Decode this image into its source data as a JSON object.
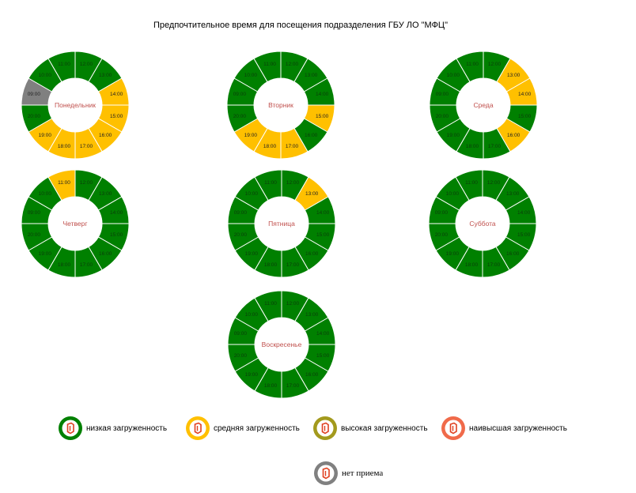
{
  "title": "Предпочтительное время для посещения подразделения ГБУ ЛО \"МФЦ\"",
  "colors": {
    "low": "#008000",
    "medium": "#ffc000",
    "high": "#a39a1d",
    "highest": "#f06a4a",
    "closed": "#808080",
    "day_label": "#c0504d"
  },
  "days": [
    {
      "name": "Понедельник",
      "slots": [
        {
          "time": "12:00",
          "level": "low"
        },
        {
          "time": "13:00",
          "level": "low"
        },
        {
          "time": "14:00",
          "level": "medium"
        },
        {
          "time": "15:00",
          "level": "medium"
        },
        {
          "time": "16:00",
          "level": "medium"
        },
        {
          "time": "17:00",
          "level": "medium"
        },
        {
          "time": "18:00",
          "level": "medium"
        },
        {
          "time": "19:00",
          "level": "medium"
        },
        {
          "time": "20:00",
          "level": "low"
        },
        {
          "time": "09:00",
          "level": "closed"
        },
        {
          "time": "10:00",
          "level": "low"
        },
        {
          "time": "11:00",
          "level": "low"
        }
      ]
    },
    {
      "name": "Вторник",
      "slots": [
        {
          "time": "12:00",
          "level": "low"
        },
        {
          "time": "13:00",
          "level": "low"
        },
        {
          "time": "14:00",
          "level": "low"
        },
        {
          "time": "15:00",
          "level": "medium"
        },
        {
          "time": "16:00",
          "level": "low"
        },
        {
          "time": "17:00",
          "level": "medium"
        },
        {
          "time": "18:00",
          "level": "medium"
        },
        {
          "time": "19:00",
          "level": "medium"
        },
        {
          "time": "20:00",
          "level": "low"
        },
        {
          "time": "09:00",
          "level": "low"
        },
        {
          "time": "10:00",
          "level": "low"
        },
        {
          "time": "11:00",
          "level": "low"
        }
      ]
    },
    {
      "name": "Среда",
      "slots": [
        {
          "time": "12:00",
          "level": "low"
        },
        {
          "time": "13:00",
          "level": "medium"
        },
        {
          "time": "14:00",
          "level": "medium"
        },
        {
          "time": "15:00",
          "level": "low"
        },
        {
          "time": "16:00",
          "level": "medium"
        },
        {
          "time": "17:00",
          "level": "low"
        },
        {
          "time": "18:00",
          "level": "low"
        },
        {
          "time": "19:00",
          "level": "low"
        },
        {
          "time": "20:00",
          "level": "low"
        },
        {
          "time": "09:00",
          "level": "low"
        },
        {
          "time": "10:00",
          "level": "low"
        },
        {
          "time": "11:00",
          "level": "low"
        }
      ]
    },
    {
      "name": "Четверг",
      "slots": [
        {
          "time": "12:00",
          "level": "low"
        },
        {
          "time": "13:00",
          "level": "low"
        },
        {
          "time": "14:00",
          "level": "low"
        },
        {
          "time": "15:00",
          "level": "low"
        },
        {
          "time": "16:00",
          "level": "low"
        },
        {
          "time": "17:00",
          "level": "low"
        },
        {
          "time": "18:00",
          "level": "low"
        },
        {
          "time": "19:00",
          "level": "low"
        },
        {
          "time": "20:00",
          "level": "low"
        },
        {
          "time": "09:00",
          "level": "low"
        },
        {
          "time": "10:00",
          "level": "low"
        },
        {
          "time": "11:00",
          "level": "medium"
        }
      ]
    },
    {
      "name": "Пятница",
      "slots": [
        {
          "time": "12:00",
          "level": "low"
        },
        {
          "time": "13:00",
          "level": "medium"
        },
        {
          "time": "14:00",
          "level": "low"
        },
        {
          "time": "15:00",
          "level": "low"
        },
        {
          "time": "16:00",
          "level": "low"
        },
        {
          "time": "17:00",
          "level": "low"
        },
        {
          "time": "18:00",
          "level": "low"
        },
        {
          "time": "19:00",
          "level": "low"
        },
        {
          "time": "20:00",
          "level": "low"
        },
        {
          "time": "09:00",
          "level": "low"
        },
        {
          "time": "10:00",
          "level": "low"
        },
        {
          "time": "11:00",
          "level": "low"
        }
      ]
    },
    {
      "name": "Суббота",
      "slots": [
        {
          "time": "12:00",
          "level": "low"
        },
        {
          "time": "13:00",
          "level": "low"
        },
        {
          "time": "14:00",
          "level": "low"
        },
        {
          "time": "15:00",
          "level": "low"
        },
        {
          "time": "16:00",
          "level": "low"
        },
        {
          "time": "17:00",
          "level": "low"
        },
        {
          "time": "18:00",
          "level": "low"
        },
        {
          "time": "19:00",
          "level": "low"
        },
        {
          "time": "20:00",
          "level": "low"
        },
        {
          "time": "09:00",
          "level": "low"
        },
        {
          "time": "10:00",
          "level": "low"
        },
        {
          "time": "11:00",
          "level": "low"
        }
      ]
    },
    {
      "name": "Воскресенье",
      "slots": [
        {
          "time": "12:00",
          "level": "low"
        },
        {
          "time": "13:00",
          "level": "low"
        },
        {
          "time": "14:00",
          "level": "low"
        },
        {
          "time": "15:00",
          "level": "low"
        },
        {
          "time": "16:00",
          "level": "low"
        },
        {
          "time": "17:00",
          "level": "low"
        },
        {
          "time": "18:00",
          "level": "low"
        },
        {
          "time": "19:00",
          "level": "low"
        },
        {
          "time": "20:00",
          "level": "low"
        },
        {
          "time": "09:00",
          "level": "low"
        },
        {
          "time": "10:00",
          "level": "low"
        },
        {
          "time": "11:00",
          "level": "low"
        }
      ]
    }
  ],
  "legend": [
    {
      "key": "low",
      "label": "низкая загруженность"
    },
    {
      "key": "medium",
      "label": "средняя загруженность"
    },
    {
      "key": "high",
      "label": "высокая загруженность"
    },
    {
      "key": "highest",
      "label": "наивысшая загруженность"
    },
    {
      "key": "closed",
      "label": "нет приема"
    }
  ]
}
